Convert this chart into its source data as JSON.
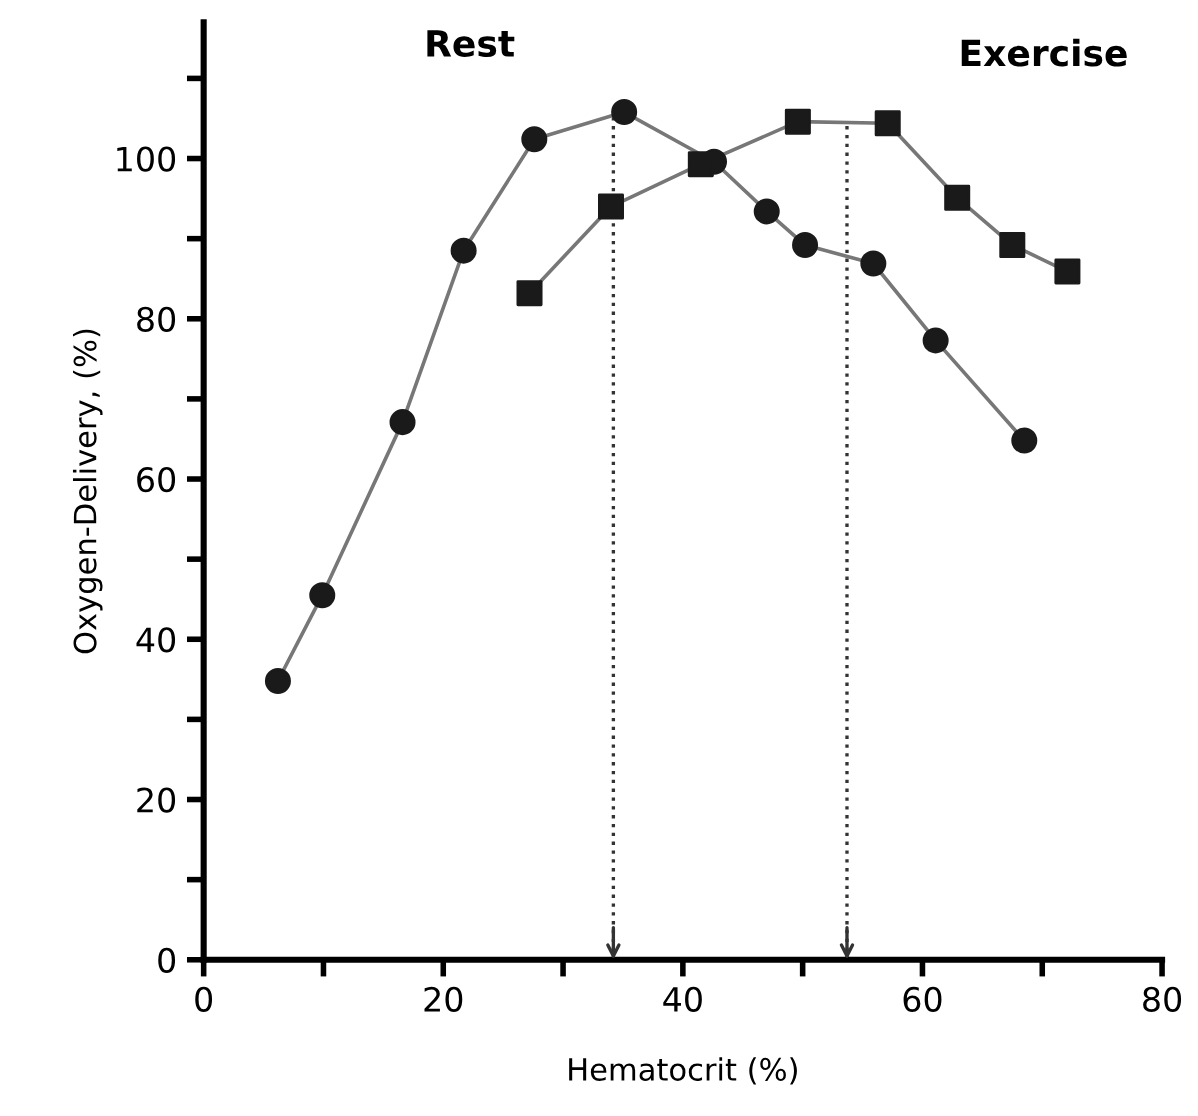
{
  "chart_data": {
    "type": "line",
    "xlabel": "Hematocrit (%)",
    "ylabel": "Oxygen-Delivery, (%)",
    "series": [
      {
        "name": "Rest",
        "color": "#1a1a1a",
        "marker": "circle",
        "x": [
          6.2,
          9.9,
          16.6,
          21.7,
          27.6,
          35.1,
          42.6,
          47.0,
          50.2,
          55.9,
          61.1,
          68.5
        ],
        "values": [
          34.8,
          45.5,
          67.1,
          88.5,
          102.4,
          105.8,
          99.6,
          93.4,
          89.2,
          86.9,
          77.3,
          64.8
        ]
      },
      {
        "name": "Exercise",
        "color": "#1a1a1a",
        "marker": "square",
        "x": [
          27.2,
          34.0,
          41.5,
          49.6,
          57.1,
          62.9,
          67.5,
          72.1
        ],
        "values": [
          83.2,
          94.0,
          99.3,
          104.6,
          104.4,
          95.1,
          89.2,
          85.9
        ]
      }
    ],
    "xlim": [
      0,
      80
    ],
    "ylim": [
      0,
      117
    ],
    "xticks": [
      0,
      {
        "value": 10,
        "label": null
      },
      20,
      {
        "value": 30,
        "label": null
      },
      40,
      {
        "value": 50,
        "label": null
      },
      60,
      {
        "value": 70,
        "label": null
      },
      80
    ],
    "yticks": [
      0,
      {
        "value": 10,
        "label": null
      },
      20,
      {
        "value": 30,
        "label": null
      },
      40,
      {
        "value": 50,
        "label": null
      },
      60,
      {
        "value": 70,
        "label": null
      },
      80,
      {
        "value": 90,
        "label": null
      },
      100,
      {
        "value": 110,
        "label": null
      }
    ],
    "ref_lines": [
      {
        "axis": "x",
        "value": 34.2,
        "line_style": "dotted",
        "color": "#333333"
      },
      {
        "axis": "x",
        "value": 53.7,
        "line_style": "dotted",
        "color": "#333333"
      }
    ],
    "grid": false,
    "legend": false
  }
}
